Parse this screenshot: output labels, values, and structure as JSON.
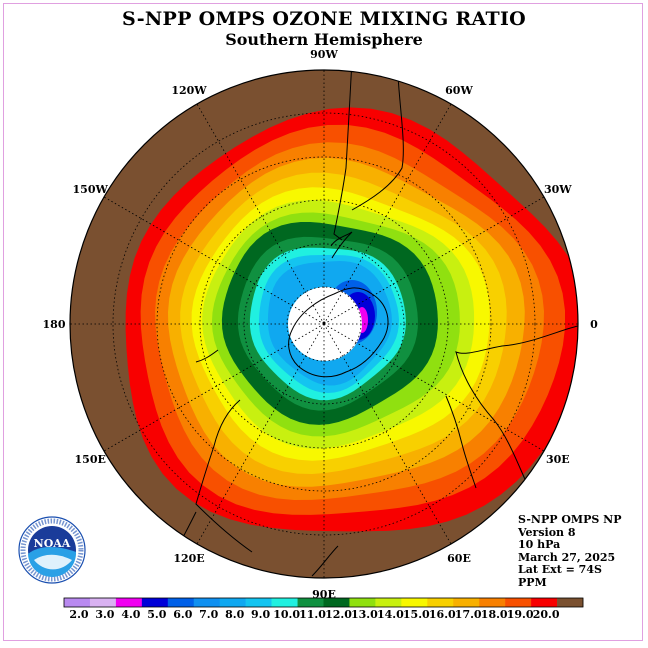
{
  "title": "S-NPP OMPS OZONE MIXING RATIO",
  "subtitle": "Southern Hemisphere",
  "info": {
    "instrument": "S-NPP OMPS NP",
    "version": "Version 8",
    "level": "10 hPa",
    "date": "March 27, 2025",
    "lat_ext": "Lat Ext = 74S",
    "units": "PPM"
  },
  "logo_text": "NOAA",
  "longitude_labels": [
    {
      "text": "90W",
      "lon": -90
    },
    {
      "text": "60W",
      "lon": -60
    },
    {
      "text": "30W",
      "lon": -30
    },
    {
      "text": "0",
      "lon": 0
    },
    {
      "text": "30E",
      "lon": 30
    },
    {
      "text": "60E",
      "lon": 60
    },
    {
      "text": "90E",
      "lon": 90
    },
    {
      "text": "120E",
      "lon": 120
    },
    {
      "text": "150E",
      "lon": 150
    },
    {
      "text": "180",
      "lon": 180
    },
    {
      "text": "150W",
      "lon": -150
    },
    {
      "text": "120W",
      "lon": -120
    }
  ],
  "colorbar": {
    "labels": [
      "2.0",
      "3.0",
      "4.0",
      "5.0",
      "6.0",
      "7.0",
      "8.0",
      "9.0",
      "10.0",
      "11.0",
      "12.0",
      "13.0",
      "14.0",
      "15.0",
      "16.0",
      "17.0",
      "18.0",
      "19.0",
      "20.0"
    ],
    "colors": [
      "#b98af0",
      "#d9b2f2",
      "#f000f0",
      "#0000d8",
      "#0060e8",
      "#1090f0",
      "#10a8f0",
      "#14c4f0",
      "#20f0e0",
      "#109040",
      "#006820",
      "#90e010",
      "#c8f010",
      "#f8f800",
      "#f8d000",
      "#f8b000",
      "#f88000",
      "#f85000",
      "#f80000",
      "#7a5030"
    ]
  },
  "field": {
    "outer_color": "#7a5030",
    "hole_color": "#ffffff"
  }
}
